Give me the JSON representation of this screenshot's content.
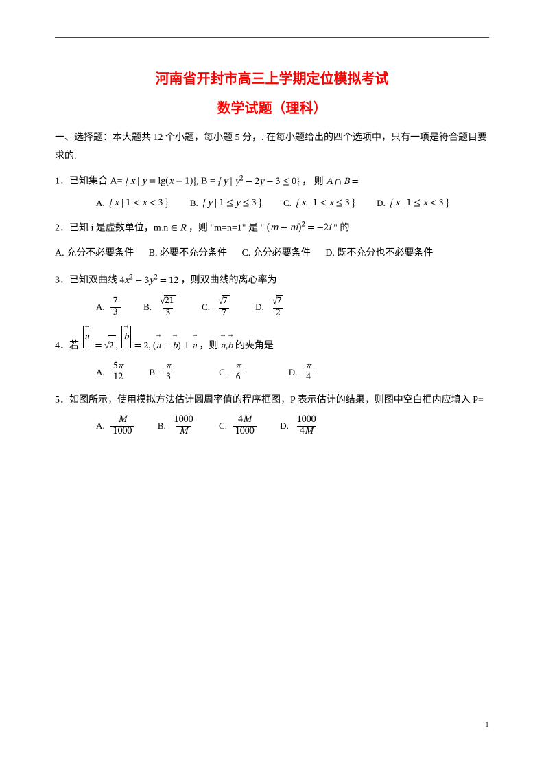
{
  "colors": {
    "title": "#ff0000",
    "text": "#000000",
    "background": "#ffffff",
    "rule": "#444444"
  },
  "typography": {
    "title_font_family": "SimHei",
    "body_font_family": "SimSun",
    "title_fontsize_pt": 15,
    "body_fontsize_pt": 10.5
  },
  "title_line1": "河南省开封市高三上学期定位模拟考试",
  "title_line2": "数学试题（理科）",
  "section_heading": "一、选择题：本大题共 12 个小题，每小题 5 分，. 在每小题给出的四个选项中，只有一项是符合题目要求的.",
  "q1": {
    "stem_prefix": "1．已知集合 A=",
    "set_A": "{ x | y = lg(x − 1) }",
    "between": ", B =",
    "set_B": "{ y | y² − 2y − 3 ≤ 0 }",
    "tail": "， 则 A ∩ B =",
    "options": {
      "A": "{ x | 1 < x < 3 }",
      "B": "{ y | 1 ≤ y ≤ 3 }",
      "C": "{ x | 1 < x ≤ 3 }",
      "D": "{ x | 1 ≤ x < 3 }"
    }
  },
  "q2": {
    "stem_prefix": "2．已知 i 是虚数单位，m.n",
    "in_R": "∈ R",
    "mid": "，则 \"m=n=1\" 是 \"",
    "expr": "(m − ni)² = −2i",
    "tail": "\" 的",
    "options": {
      "A": "A. 充分不必要条件",
      "B": "B. 必要不充分条件",
      "C": "C. 充分必要条件",
      "D": "D. 既不充分也不必要条件"
    }
  },
  "q3": {
    "stem_prefix": "3．已知双曲线",
    "eq": "4x² − 3y² = 12",
    "tail": "，则双曲线的离心率为",
    "options": {
      "A": {
        "num": "7",
        "den": "3"
      },
      "B": {
        "num_sqrt": "21",
        "den": "3"
      },
      "C": {
        "num_sqrt": "7",
        "den": "7"
      },
      "D": {
        "num_sqrt": "7",
        "den": "2"
      }
    }
  },
  "q4": {
    "stem_prefix": "4．若",
    "expr_plain": "|a| = √2, |b| = 2, (a − b) ⊥ a",
    "tail_prefix": "，则",
    "tail_vectors": "a, b",
    "tail_suffix": "的夹角是",
    "options": {
      "A": {
        "num": "5π",
        "den": "12"
      },
      "B": {
        "num": "π",
        "den": "3"
      },
      "C": {
        "num": "π",
        "den": "6"
      },
      "D": {
        "num": "π",
        "den": "4"
      }
    }
  },
  "q5": {
    "stem": "5．如图所示，使用模拟方法估计圆周率值的程序框图，P 表示估计的结果，则图中空白框内应填入 P=",
    "options": {
      "A": {
        "num": "M",
        "den": "1000"
      },
      "B": {
        "num": "1000",
        "den": "M"
      },
      "C": {
        "num": "4M",
        "den": "1000"
      },
      "D": {
        "num": "1000",
        "den": "4M"
      }
    }
  },
  "option_labels": {
    "A": "A.",
    "B": "B.",
    "C": "C.",
    "D": "D."
  },
  "page_number": "1"
}
